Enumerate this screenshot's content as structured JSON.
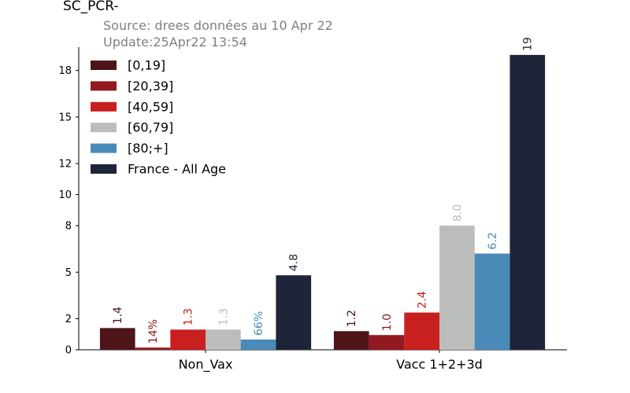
{
  "header": {
    "title": "SC_PCR-",
    "source": "Source: drees données au 10 Apr 22",
    "update": "Update:25Apr22 13:54"
  },
  "chart_data": {
    "type": "bar",
    "categories": [
      "Non_Vax",
      "Vacc 1+2+3d"
    ],
    "series": [
      {
        "name": "[0,19]",
        "color": "#4f1418",
        "values": [
          1.4,
          1.2
        ],
        "labels": [
          "1.4",
          "1.2"
        ]
      },
      {
        "name": "[20,39]",
        "color": "#92191f",
        "values": [
          0.14,
          0.95
        ],
        "labels": [
          "14%",
          "1.0"
        ]
      },
      {
        "name": "[40,59]",
        "color": "#c8201f",
        "values": [
          1.3,
          2.4
        ],
        "labels": [
          "1.3",
          "2.4"
        ]
      },
      {
        "name": "[60,79]",
        "color": "#bbbdba",
        "values": [
          1.3,
          8.0
        ],
        "labels": [
          "1.3",
          "8.0"
        ]
      },
      {
        "name": "[80;+]",
        "color": "#4a8ab8",
        "values": [
          0.66,
          6.2
        ],
        "labels": [
          "66%",
          "6.2"
        ]
      },
      {
        "name": "France - All Age",
        "color": "#1e2538",
        "values": [
          4.8,
          19
        ],
        "labels": [
          "4.8",
          "19"
        ]
      }
    ],
    "yticks": [
      0,
      2,
      5,
      8,
      10,
      12,
      15,
      18
    ],
    "ylim": [
      0,
      19.5
    ],
    "xlabel": "",
    "ylabel": "",
    "legend_position": "top-left",
    "grid": false
  }
}
